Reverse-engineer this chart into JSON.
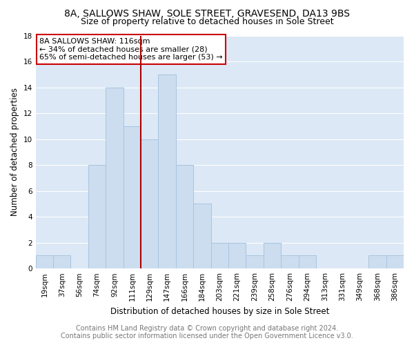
{
  "title": "8A, SALLOWS SHAW, SOLE STREET, GRAVESEND, DA13 9BS",
  "subtitle": "Size of property relative to detached houses in Sole Street",
  "xlabel": "Distribution of detached houses by size in Sole Street",
  "ylabel": "Number of detached properties",
  "bins": [
    "19sqm",
    "37sqm",
    "56sqm",
    "74sqm",
    "92sqm",
    "111sqm",
    "129sqm",
    "147sqm",
    "166sqm",
    "184sqm",
    "203sqm",
    "221sqm",
    "239sqm",
    "258sqm",
    "276sqm",
    "294sqm",
    "313sqm",
    "331sqm",
    "349sqm",
    "368sqm",
    "386sqm"
  ],
  "counts": [
    1,
    1,
    0,
    8,
    14,
    11,
    10,
    15,
    8,
    5,
    2,
    2,
    1,
    2,
    1,
    1,
    0,
    0,
    0,
    1,
    1
  ],
  "bar_color": "#ccddf0",
  "bar_edge_color": "#a8c4e0",
  "vline_pos": 5.5,
  "vline_color": "#aa0000",
  "annotation_text": "8A SALLOWS SHAW: 116sqm\n← 34% of detached houses are smaller (28)\n65% of semi-detached houses are larger (53) →",
  "annotation_box_facecolor": "#ffffff",
  "annotation_box_edgecolor": "#cc0000",
  "ylim": [
    0,
    18
  ],
  "yticks": [
    0,
    2,
    4,
    6,
    8,
    10,
    12,
    14,
    16,
    18
  ],
  "footer_line1": "Contains HM Land Registry data © Crown copyright and database right 2024.",
  "footer_line2": "Contains public sector information licensed under the Open Government Licence v3.0.",
  "plot_bg_color": "#dce8f5",
  "grid_color": "#ffffff",
  "title_fontsize": 10,
  "subtitle_fontsize": 9,
  "axis_label_fontsize": 8.5,
  "tick_fontsize": 7.5,
  "annotation_fontsize": 8,
  "footer_fontsize": 7
}
